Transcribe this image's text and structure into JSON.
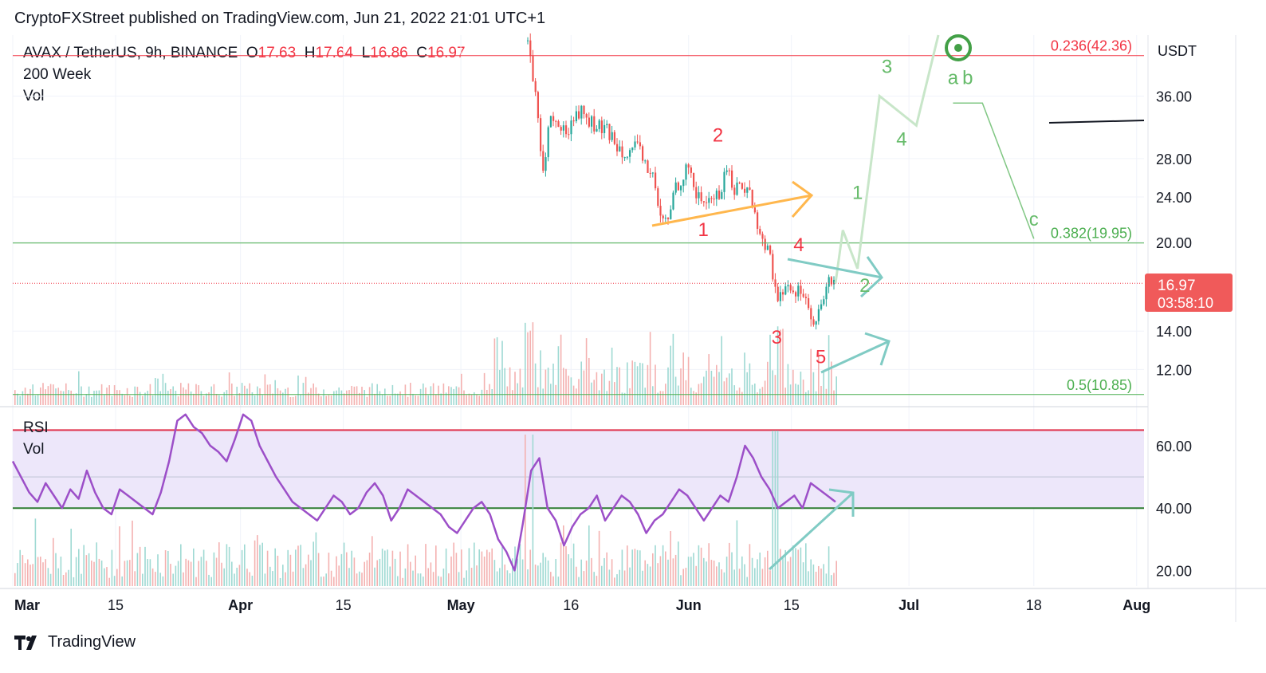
{
  "header": {
    "publisher": "CryptoFXStreet published on TradingView.com, Jun 21, 2022 21:01 UTC+1"
  },
  "legend": {
    "symbol": "AVAX / TetherUS, 9h, BINANCE",
    "o_label": "O",
    "o_value": "17.63",
    "h_label": "H",
    "h_value": "17.64",
    "l_label": "L",
    "l_value": "16.86",
    "c_label": "C",
    "c_value": "16.97",
    "indicator_ma": "200 Week",
    "indicator_vol": "Vol",
    "indicator_rsi": "RSI",
    "indicator_vol2": "Vol"
  },
  "footer": {
    "brand": "TradingView"
  },
  "colors": {
    "up": "#26a69a",
    "down": "#ef5350",
    "rsi": "#9c4fc8",
    "rsi_band": "#ede7fa",
    "fib_red": "#f23645",
    "fib_green": "#4caf50",
    "wave_red": "#f23645",
    "wave_green": "#66bb6a",
    "price_tag": "#f05a5a"
  },
  "chart_data": [
    {
      "type": "candlestick",
      "symbol": "AVAX / TetherUS",
      "interval": "9h",
      "exchange": "BINANCE",
      "y_unit": "USDT",
      "y_scale": "log",
      "ylim": [
        10.4,
        46
      ],
      "xlim": [
        "2022-03-01",
        "2022-08-02"
      ],
      "x_ticks": [
        "Mar",
        "15",
        "Apr",
        "15",
        "May",
        "16",
        "Jun",
        "15",
        "Jul",
        "18",
        "Aug"
      ],
      "x_tick_dates": [
        "2022-03-01",
        "2022-03-15",
        "2022-04-01",
        "2022-04-15",
        "2022-05-01",
        "2022-05-16",
        "2022-06-01",
        "2022-06-15",
        "2022-07-01",
        "2022-07-18",
        "2022-08-01"
      ],
      "y_ticks": [
        "36.00",
        "28.00",
        "24.00",
        "20.00",
        "14.00",
        "12.00"
      ],
      "y_tick_values": [
        36,
        28,
        24,
        20,
        14,
        12
      ],
      "current_price": "16.97",
      "countdown": "03:58:10",
      "fib_levels": [
        {
          "label": "0.236(42.36)",
          "value": 42.36,
          "color": "red"
        },
        {
          "label": "0.382(19.95)",
          "value": 19.95,
          "color": "green"
        },
        {
          "label": "0.5(10.85)",
          "value": 10.85,
          "color": "green"
        }
      ],
      "price_path": [
        {
          "date": "2022-05-10",
          "price": 45
        },
        {
          "date": "2022-05-11",
          "price": 36
        },
        {
          "date": "2022-05-12",
          "price": 26
        },
        {
          "date": "2022-05-13",
          "price": 33
        },
        {
          "date": "2022-05-15",
          "price": 31
        },
        {
          "date": "2022-05-17",
          "price": 34
        },
        {
          "date": "2022-05-19",
          "price": 32
        },
        {
          "date": "2022-05-21",
          "price": 31
        },
        {
          "date": "2022-05-23",
          "price": 29
        },
        {
          "date": "2022-05-25",
          "price": 29
        },
        {
          "date": "2022-05-27",
          "price": 26
        },
        {
          "date": "2022-05-28",
          "price": 22
        },
        {
          "date": "2022-05-29",
          "price": 21.5
        },
        {
          "date": "2022-05-30",
          "price": 25
        },
        {
          "date": "2022-06-01",
          "price": 27
        },
        {
          "date": "2022-06-02",
          "price": 24
        },
        {
          "date": "2022-06-03",
          "price": 23.5
        },
        {
          "date": "2022-06-04",
          "price": 24
        },
        {
          "date": "2022-06-05",
          "price": 24
        },
        {
          "date": "2022-06-06",
          "price": 27
        },
        {
          "date": "2022-06-07",
          "price": 25
        },
        {
          "date": "2022-06-09",
          "price": 25
        },
        {
          "date": "2022-06-10",
          "price": 22
        },
        {
          "date": "2022-06-11",
          "price": 20
        },
        {
          "date": "2022-06-12",
          "price": 19
        },
        {
          "date": "2022-06-13",
          "price": 15.5
        },
        {
          "date": "2022-06-14",
          "price": 17
        },
        {
          "date": "2022-06-15",
          "price": 16
        },
        {
          "date": "2022-06-16",
          "price": 17
        },
        {
          "date": "2022-06-17",
          "price": 15.5
        },
        {
          "date": "2022-06-18",
          "price": 14
        },
        {
          "date": "2022-06-19",
          "price": 15.5
        },
        {
          "date": "2022-06-20",
          "price": 17
        },
        {
          "date": "2022-06-21",
          "price": 17.6
        },
        {
          "date": "2022-06-21",
          "price": 16.97
        }
      ],
      "wave_labels_red": [
        {
          "text": "2",
          "date": "2022-06-05",
          "price": 30
        },
        {
          "text": "1",
          "date": "2022-06-03",
          "price": 20.5
        },
        {
          "text": "4",
          "date": "2022-06-16",
          "price": 19.3
        },
        {
          "text": "3",
          "date": "2022-06-13",
          "price": 13.3
        },
        {
          "text": "5",
          "date": "2022-06-19",
          "price": 12.3
        }
      ],
      "wave_labels_green": [
        {
          "text": "1",
          "date": "2022-06-24",
          "price": 23.8
        },
        {
          "text": "2",
          "date": "2022-06-25",
          "price": 16.4
        },
        {
          "text": "3",
          "date": "2022-06-28",
          "price": 39.5
        },
        {
          "text": "4",
          "date": "2022-06-30",
          "price": 29.5
        },
        {
          "text": "a",
          "date": "2022-07-07",
          "price": 37.8
        },
        {
          "text": "b",
          "date": "2022-07-09",
          "price": 37.8
        },
        {
          "text": "c",
          "date": "2022-07-18",
          "price": 21.4
        }
      ],
      "projection_path": [
        {
          "date": "2022-06-21",
          "price": 16.97
        },
        {
          "date": "2022-06-22",
          "price": 21
        },
        {
          "date": "2022-06-24",
          "price": 18
        },
        {
          "date": "2022-06-27",
          "price": 36
        },
        {
          "date": "2022-07-02",
          "price": 32
        },
        {
          "date": "2022-07-05",
          "price": 46
        }
      ],
      "projection_abc": [
        {
          "date": "2022-07-07",
          "price": 35
        },
        {
          "date": "2022-07-11",
          "price": 35
        },
        {
          "date": "2022-07-18",
          "price": 20.3
        }
      ]
    },
    {
      "type": "line",
      "name": "RSI",
      "ylim": [
        15,
        72
      ],
      "y_ticks": [
        "60.00",
        "40.00",
        "20.00"
      ],
      "y_tick_values": [
        60,
        40,
        20
      ],
      "bands": {
        "upper": 65,
        "lower": 40,
        "mid": 50
      },
      "values": [
        55,
        50,
        45,
        42,
        48,
        44,
        40,
        46,
        43,
        52,
        45,
        40,
        38,
        46,
        44,
        42,
        40,
        38,
        45,
        55,
        68,
        70,
        66,
        64,
        60,
        58,
        55,
        62,
        70,
        68,
        60,
        55,
        50,
        46,
        42,
        40,
        38,
        36,
        40,
        44,
        42,
        38,
        40,
        45,
        48,
        44,
        36,
        40,
        46,
        44,
        42,
        40,
        38,
        34,
        32,
        36,
        40,
        42,
        38,
        30,
        26,
        20,
        35,
        52,
        56,
        40,
        36,
        28,
        34,
        38,
        40,
        44,
        36,
        40,
        44,
        42,
        38,
        32,
        36,
        38,
        42,
        46,
        44,
        40,
        36,
        40,
        44,
        42,
        50,
        60,
        56,
        50,
        46,
        40,
        42,
        44,
        40,
        48,
        46,
        44,
        42
      ]
    }
  ]
}
